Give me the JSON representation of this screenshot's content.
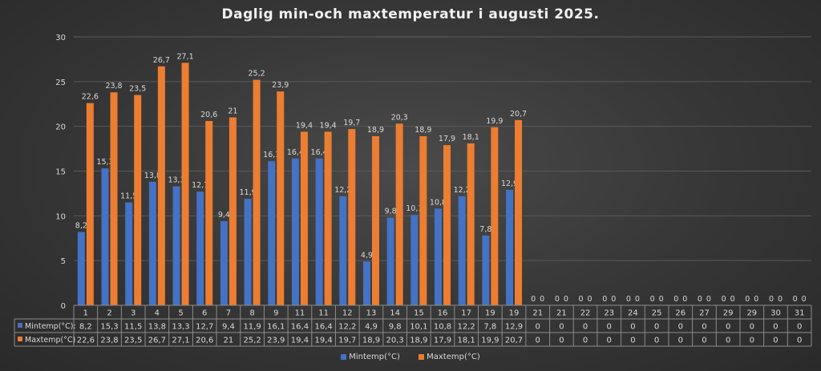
{
  "chart_data": {
    "type": "bar",
    "title": "Daglig min-och maxtemperatur i augusti 2025.",
    "xlabel": "",
    "ylabel": "",
    "ylim": [
      0,
      30
    ],
    "yticks": [
      0,
      5,
      10,
      15,
      20,
      25,
      30
    ],
    "grid": true,
    "legend_position": "bottom",
    "categories": [
      "1",
      "2",
      "3",
      "4",
      "5",
      "6",
      "7",
      "8",
      "9",
      "11",
      "11",
      "12",
      "13",
      "14",
      "15",
      "16",
      "17",
      "19",
      "19",
      "21",
      "21",
      "22",
      "23",
      "24",
      "25",
      "26",
      "27",
      "29",
      "29",
      "30",
      "31"
    ],
    "series": [
      {
        "name": "Mintemp(°C):",
        "legend_label": "Mintemp(°C)",
        "color": "#4472c4",
        "values": [
          8.2,
          15.3,
          11.5,
          13.8,
          13.3,
          12.7,
          9.4,
          11.9,
          16.1,
          16.4,
          16.4,
          12.2,
          4.9,
          9.8,
          10.1,
          10.8,
          12.2,
          7.8,
          12.9,
          0,
          0,
          0,
          0,
          0,
          0,
          0,
          0,
          0,
          0,
          0,
          0
        ],
        "labels": [
          "8,2",
          "15,3",
          "11,5",
          "13,8",
          "13,3",
          "12,7",
          "9,4",
          "11,9",
          "16,1",
          "16,4",
          "16,4",
          "12,2",
          "4,9",
          "9,8",
          "10,1",
          "10,8",
          "12,2",
          "7,8",
          "12,9",
          "0",
          "0",
          "0",
          "0",
          "0",
          "0",
          "0",
          "0",
          "0",
          "0",
          "0",
          "0"
        ]
      },
      {
        "name": "Maxtemp(°C)",
        "legend_label": "Maxtemp(°C)",
        "color": "#ed7d31",
        "values": [
          22.6,
          23.8,
          23.5,
          26.7,
          27.1,
          20.6,
          21,
          25.2,
          23.9,
          19.4,
          19.4,
          19.7,
          18.9,
          20.3,
          18.9,
          17.9,
          18.1,
          19.9,
          20.7,
          0,
          0,
          0,
          0,
          0,
          0,
          0,
          0,
          0,
          0,
          0,
          0
        ],
        "labels": [
          "22,6",
          "23,8",
          "23,5",
          "26,7",
          "27,1",
          "20,6",
          "21",
          "25,2",
          "23,9",
          "19,4",
          "19,4",
          "19,7",
          "18,9",
          "20,3",
          "18,9",
          "17,9",
          "18,1",
          "19,9",
          "20,7",
          "0",
          "0",
          "0",
          "0",
          "0",
          "0",
          "0",
          "0",
          "0",
          "0",
          "0",
          "0"
        ]
      }
    ]
  }
}
